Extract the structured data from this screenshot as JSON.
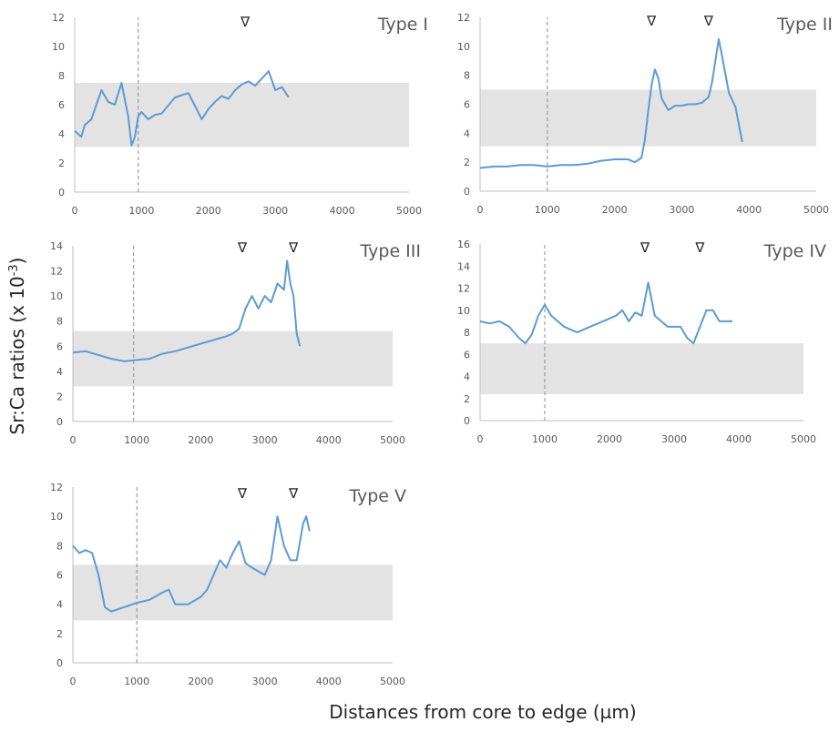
{
  "figure": {
    "ylabel": "Sr:Ca ratios (x 10",
    "ylabel_sup": "-3",
    "ylabel_close": ")",
    "xlabel": "Distances from core to edge (µm)",
    "marker_symbol": "∇",
    "colors": {
      "line": "#5b9bd5",
      "band": "#e3e3e3",
      "axis": "#bfbfbf",
      "dashed": "#8c8c8c"
    }
  },
  "chart_data": [
    {
      "type": "line",
      "title": "Type I",
      "xlim": [
        0,
        5000
      ],
      "ylim": [
        0,
        12
      ],
      "xticks": [
        0,
        1000,
        2000,
        3000,
        4000,
        5000
      ],
      "xtick_labels": [
        "0",
        "1000",
        "2000",
        "3000",
        "4000",
        "5000"
      ],
      "yticks": [
        0,
        2,
        4,
        6,
        8,
        10,
        12
      ],
      "band": [
        3.1,
        7.5
      ],
      "vline": 950,
      "markers": [
        2550
      ],
      "x": [
        0,
        100,
        150,
        250,
        400,
        500,
        600,
        700,
        800,
        850,
        900,
        950,
        1000,
        1100,
        1200,
        1300,
        1500,
        1700,
        1900,
        2000,
        2100,
        2200,
        2300,
        2400,
        2500,
        2600,
        2700,
        2800,
        2900,
        3000,
        3100,
        3200
      ],
      "y": [
        4.2,
        3.8,
        4.6,
        5.0,
        7.0,
        6.2,
        6.0,
        7.5,
        5.2,
        3.2,
        3.8,
        5.2,
        5.5,
        5.0,
        5.3,
        5.4,
        6.5,
        6.8,
        5.0,
        5.7,
        6.2,
        6.6,
        6.4,
        7.0,
        7.4,
        7.6,
        7.3,
        7.8,
        8.3,
        7.0,
        7.2,
        6.5
      ]
    },
    {
      "type": "line",
      "title": "Type II",
      "xlim": [
        0,
        5000
      ],
      "ylim": [
        0,
        12
      ],
      "xticks": [
        0,
        1000,
        2000,
        3000,
        4000,
        5000
      ],
      "xtick_labels": [
        "0",
        "1000",
        "2000",
        "3000",
        "4000",
        "5000"
      ],
      "yticks": [
        0,
        2,
        4,
        6,
        8,
        10,
        12
      ],
      "band": [
        3.1,
        7.0
      ],
      "vline": 1000,
      "markers": [
        2550,
        3400
      ],
      "x": [
        0,
        200,
        400,
        600,
        800,
        1000,
        1200,
        1400,
        1600,
        1800,
        2000,
        2200,
        2300,
        2400,
        2450,
        2500,
        2550,
        2600,
        2650,
        2700,
        2800,
        2900,
        3000,
        3100,
        3200,
        3300,
        3400,
        3450,
        3500,
        3550,
        3600,
        3700,
        3800,
        3900
      ],
      "y": [
        1.6,
        1.7,
        1.7,
        1.8,
        1.8,
        1.7,
        1.8,
        1.8,
        1.9,
        2.1,
        2.2,
        2.2,
        2.0,
        2.3,
        3.5,
        5.5,
        7.3,
        8.4,
        7.8,
        6.4,
        5.6,
        5.9,
        5.9,
        6.0,
        6.0,
        6.1,
        6.5,
        7.5,
        9.0,
        10.5,
        9.3,
        6.8,
        5.8,
        3.4
      ]
    },
    {
      "type": "line",
      "title": "Type III",
      "xlim": [
        0,
        5000
      ],
      "ylim": [
        0,
        14
      ],
      "xticks": [
        0,
        1000,
        2000,
        3000,
        4000,
        5000
      ],
      "xtick_labels": [
        "0",
        "1000",
        "2000",
        "3000",
        "4000",
        "5000"
      ],
      "yticks": [
        0,
        2,
        4,
        6,
        8,
        10,
        12,
        14
      ],
      "band": [
        2.8,
        7.2
      ],
      "vline": 950,
      "markers": [
        2650,
        3450
      ],
      "x": [
        0,
        200,
        400,
        600,
        800,
        1000,
        1200,
        1400,
        1600,
        1800,
        2000,
        2200,
        2400,
        2500,
        2600,
        2700,
        2800,
        2900,
        3000,
        3100,
        3200,
        3300,
        3350,
        3400,
        3450,
        3500,
        3550
      ],
      "y": [
        5.5,
        5.6,
        5.3,
        5.0,
        4.8,
        4.9,
        5.0,
        5.4,
        5.6,
        5.9,
        6.2,
        6.5,
        6.8,
        7.0,
        7.4,
        9.0,
        10.0,
        9.0,
        10.0,
        9.5,
        11.0,
        10.5,
        12.8,
        11.0,
        10.0,
        7.0,
        6.0
      ]
    },
    {
      "type": "line",
      "title": "Type IV",
      "xlim": [
        0,
        5000
      ],
      "ylim": [
        0,
        16
      ],
      "xticks": [
        0,
        1000,
        2000,
        3000,
        4000,
        5000
      ],
      "xtick_labels": [
        "0",
        "1000",
        "2000",
        "3000",
        "4000",
        "5000"
      ],
      "yticks": [
        0,
        2,
        4,
        6,
        8,
        10,
        12,
        14,
        16
      ],
      "band": [
        2.4,
        7.0
      ],
      "vline": 1000,
      "markers": [
        2550,
        3400
      ],
      "x": [
        0,
        150,
        300,
        450,
        600,
        700,
        800,
        900,
        1000,
        1100,
        1300,
        1500,
        1700,
        1900,
        2100,
        2200,
        2300,
        2400,
        2500,
        2600,
        2700,
        2900,
        3100,
        3200,
        3300,
        3400,
        3500,
        3600,
        3700,
        3800,
        3900
      ],
      "y": [
        9.0,
        8.8,
        9.0,
        8.5,
        7.5,
        7.0,
        7.8,
        9.5,
        10.5,
        9.5,
        8.5,
        8.0,
        8.5,
        9.0,
        9.5,
        10.0,
        9.0,
        9.8,
        9.5,
        12.5,
        9.5,
        8.5,
        8.5,
        7.5,
        7.0,
        8.5,
        10.0,
        10.0,
        9.0,
        9.0,
        9.0
      ]
    },
    {
      "type": "line",
      "title": "Type V",
      "xlim": [
        0,
        5000
      ],
      "ylim": [
        0,
        12
      ],
      "xticks": [
        0,
        1000,
        2000,
        3000,
        4000,
        5000
      ],
      "xtick_labels": [
        "0",
        "1000",
        "2000",
        "3000",
        "4000",
        "5000"
      ],
      "yticks": [
        0,
        2,
        4,
        6,
        8,
        10,
        12
      ],
      "band": [
        2.9,
        6.7
      ],
      "vline": 1000,
      "markers": [
        2650,
        3450
      ],
      "x": [
        0,
        100,
        200,
        300,
        400,
        500,
        600,
        800,
        1000,
        1200,
        1400,
        1500,
        1600,
        1800,
        2000,
        2100,
        2200,
        2300,
        2400,
        2500,
        2600,
        2700,
        2800,
        3000,
        3100,
        3200,
        3300,
        3400,
        3500,
        3600,
        3650,
        3700
      ],
      "y": [
        8.0,
        7.5,
        7.7,
        7.5,
        6.0,
        3.8,
        3.5,
        3.8,
        4.1,
        4.3,
        4.8,
        5.0,
        4.0,
        4.0,
        4.5,
        5.0,
        6.0,
        7.0,
        6.5,
        7.5,
        8.3,
        6.8,
        6.5,
        6.0,
        7.0,
        10.0,
        8.0,
        7.0,
        7.0,
        9.5,
        10.0,
        9.0
      ]
    }
  ]
}
